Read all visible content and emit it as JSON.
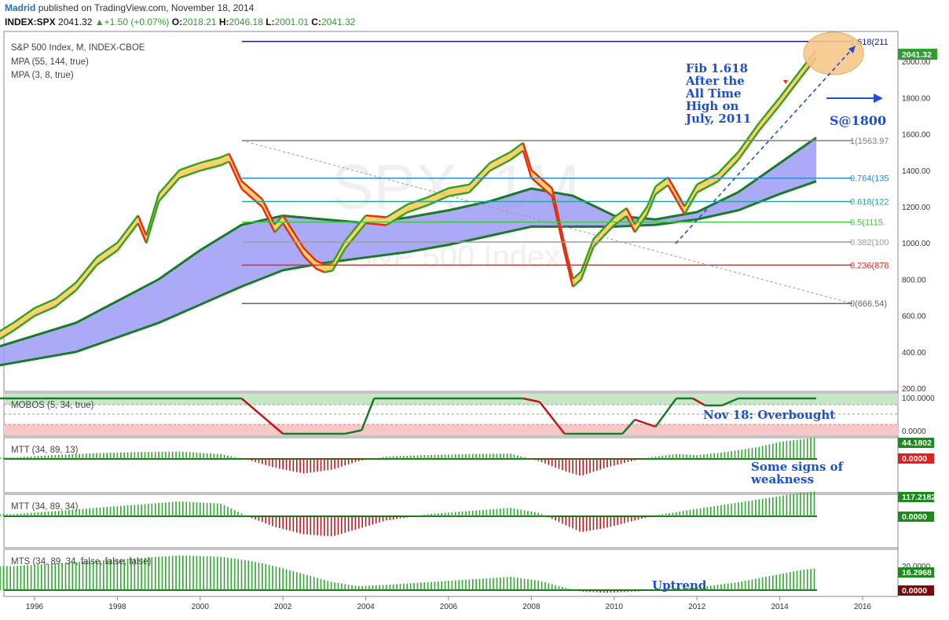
{
  "header": {
    "author": "Madrid",
    "published_text": "published on TradingView.com, November 18, 2014",
    "symbol": "INDEX:SPX",
    "last": "2041.32",
    "change": "+1.50 (+0.07%)",
    "open_label": "O:",
    "open": "2018.21",
    "high_label": "H:",
    "high": "2046.18",
    "low_label": "L:",
    "low": "2001.01",
    "close_label": "C:",
    "close": "2041.32"
  },
  "main_pane": {
    "title": "S&P 500 Index, M, INDEX-CBOE",
    "indicator1": "MPA (55, 144, true)",
    "indicator2": "MPA (3, 8, true)",
    "watermark_symbol": "SPX, 1M",
    "watermark_name": "S&P 500 Index",
    "price_badge": "2041.32",
    "price_ticks": [
      "200.00",
      "400.00",
      "600.00",
      "800.00",
      "1000.00",
      "1200.00",
      "1400.00",
      "1600.00",
      "1800.00",
      "2000.00"
    ],
    "fib_levels": [
      {
        "label": "1.618(211",
        "value": 2110,
        "color": "#1a237e"
      },
      {
        "label": "1(1563.97",
        "value": 1563.97,
        "color": "#808080"
      },
      {
        "label": "0.764(135",
        "value": 1357,
        "color": "#2e8bd6"
      },
      {
        "label": "0.618(122",
        "value": 1228,
        "color": "#26a69a"
      },
      {
        "label": "0.5(1115.",
        "value": 1115,
        "color": "#43c443"
      },
      {
        "label": "0.382(100",
        "value": 1005,
        "color": "#9e9e9e"
      },
      {
        "label": "0.236(878",
        "value": 878,
        "color": "#d32f2f"
      },
      {
        "label": "0(666.54)",
        "value": 666.54,
        "color": "#666666"
      }
    ],
    "annotations": {
      "fib_note": [
        "Fib 1.618",
        "After the",
        "All Time",
        "High on",
        "July, 2011"
      ],
      "target": "S@1800"
    }
  },
  "mobos_pane": {
    "label": "MOBOS (5, 34, true)",
    "ticks": [
      "100.0000",
      "0.0000"
    ],
    "note": "Nov 18: Overbought"
  },
  "mtt1_pane": {
    "label": "MTT (34, 89, 13)",
    "badges": [
      "44.1802",
      "0.0000"
    ],
    "note": [
      "Some signs of",
      "weakness"
    ]
  },
  "mtt2_pane": {
    "label": "MTT (34, 89, 34)",
    "badges": [
      "117.2182",
      "0.0000"
    ]
  },
  "mts_pane": {
    "label": "MTS (34, 89, 34, false, false, false)",
    "tick": "20.0000",
    "badges": [
      "16.2968",
      "0.0000"
    ],
    "note": "Uptrend"
  },
  "x_axis": {
    "ticks": [
      "1996",
      "1998",
      "2000",
      "2002",
      "2004",
      "2006",
      "2008",
      "2010",
      "2012",
      "2014",
      "2016"
    ]
  },
  "colors": {
    "ribbon_fill": "#9b9bf5",
    "ribbon_green": "#1a7a2a",
    "price_up": "#3aa020",
    "price_down": "#e53010",
    "price_fill": "#ffd070",
    "down_ribbon": "#b0306a",
    "mobos_green_zone": "#c8e6c8",
    "mobos_red_zone": "#f8c8c8",
    "hist_pos": "#2ea82e",
    "hist_neg": "#c01818",
    "annotation_blue": "#1f4fd0"
  },
  "chart_data": [
    {
      "type": "line",
      "title": "S&P 500 Index, M, INDEX-CBOE",
      "x_unit": "year",
      "ylim": [
        200,
        2150
      ],
      "series": [
        {
          "name": "S&P 500 Index",
          "x": [
            1995.0,
            1995.5,
            1996.0,
            1996.5,
            1997.0,
            1997.5,
            1998.0,
            1998.5,
            1998.7,
            1999.0,
            1999.5,
            2000.0,
            2000.5,
            2000.7,
            2001.0,
            2001.5,
            2001.8,
            2002.0,
            2002.5,
            2002.8,
            2003.0,
            2003.2,
            2003.5,
            2004.0,
            2004.5,
            2005.0,
            2005.5,
            2006.0,
            2006.5,
            2007.0,
            2007.5,
            2007.8,
            2008.0,
            2008.5,
            2008.8,
            2009.0,
            2009.2,
            2009.5,
            2010.0,
            2010.3,
            2010.5,
            2010.8,
            2011.0,
            2011.3,
            2011.7,
            2012.0,
            2012.5,
            2013.0,
            2013.5,
            2014.0,
            2014.5,
            2014.88
          ],
          "y": [
            470,
            540,
            620,
            670,
            760,
            900,
            980,
            1130,
            1020,
            1250,
            1380,
            1420,
            1450,
            1470,
            1320,
            1220,
            1080,
            1130,
            950,
            880,
            860,
            870,
            990,
            1130,
            1120,
            1190,
            1230,
            1280,
            1300,
            1420,
            1480,
            1530,
            1380,
            1280,
            970,
            780,
            820,
            1000,
            1120,
            1170,
            1080,
            1180,
            1290,
            1340,
            1180,
            1300,
            1360,
            1480,
            1640,
            1780,
            1930,
            2041
          ]
        },
        {
          "name": "MPA slow upper",
          "x": [
            1995,
            1997,
            1999,
            2000,
            2001,
            2002,
            2003,
            2004,
            2005,
            2006,
            2007,
            2008,
            2009,
            2010,
            2011,
            2012,
            2013,
            2014,
            2014.88
          ],
          "y": [
            420,
            560,
            800,
            960,
            1100,
            1150,
            1130,
            1110,
            1140,
            1180,
            1230,
            1300,
            1260,
            1150,
            1130,
            1170,
            1280,
            1440,
            1580
          ]
        },
        {
          "name": "MPA slow lower",
          "x": [
            1995,
            1997,
            1999,
            2000,
            2001,
            2002,
            2003,
            2004,
            2005,
            2006,
            2007,
            2008,
            2009,
            2010,
            2011,
            2012,
            2013,
            2014,
            2014.88
          ],
          "y": [
            320,
            400,
            560,
            660,
            760,
            850,
            890,
            920,
            950,
            990,
            1040,
            1090,
            1090,
            1090,
            1100,
            1130,
            1180,
            1270,
            1340
          ]
        }
      ]
    },
    {
      "type": "line",
      "title": "MOBOS (5, 34, true)",
      "ylim": [
        -5,
        105
      ],
      "series": [
        {
          "name": "MOBOS",
          "x": [
            1995,
            2001.0,
            2001.5,
            2002.0,
            2003.5,
            2003.9,
            2004.2,
            2007.8,
            2008.2,
            2008.8,
            2010.2,
            2010.5,
            2011.0,
            2011.5,
            2011.9,
            2012.2,
            2012.6,
            2013.0,
            2014.88
          ],
          "y": [
            100,
            100,
            50,
            0,
            0,
            10,
            100,
            100,
            90,
            0,
            0,
            40,
            20,
            100,
            100,
            80,
            80,
            100,
            100
          ]
        }
      ]
    },
    {
      "type": "bar",
      "title": "MTT (34, 89, 13)",
      "series": [
        {
          "name": "MTT 13",
          "x": [
            1995.5,
            1996.5,
            1997.5,
            1998.5,
            1999.5,
            2000.5,
            2001.2,
            2001.8,
            2002.5,
            2003.2,
            2003.8,
            2004.5,
            2005.5,
            2006.5,
            2007.5,
            2008.2,
            2008.8,
            2009.2,
            2009.8,
            2010.5,
            2011.0,
            2011.5,
            2012.0,
            2012.5,
            2013.0,
            2013.5,
            2014.0,
            2014.5,
            2014.88
          ],
          "y": [
            3,
            8,
            12,
            14,
            15,
            10,
            -3,
            -18,
            -30,
            -22,
            -5,
            5,
            8,
            10,
            11,
            -5,
            -25,
            -35,
            -18,
            -3,
            5,
            10,
            8,
            12,
            18,
            25,
            35,
            40,
            44.18
          ]
        }
      ]
    },
    {
      "type": "bar",
      "title": "MTT (34, 89, 34)",
      "series": [
        {
          "name": "MTT 34",
          "x": [
            1995.5,
            1996.5,
            1997.5,
            1998.5,
            1999.5,
            2000.5,
            2001.2,
            2001.8,
            2002.5,
            2003.2,
            2003.8,
            2004.5,
            2005.5,
            2006.5,
            2007.5,
            2008.2,
            2008.8,
            2009.2,
            2009.8,
            2010.5,
            2011.0,
            2011.5,
            2012.0,
            2012.5,
            2013.0,
            2013.5,
            2014.0,
            2014.5,
            2014.88
          ],
          "y": [
            10,
            25,
            40,
            55,
            70,
            60,
            -5,
            -50,
            -85,
            -95,
            -60,
            -20,
            10,
            25,
            40,
            15,
            -40,
            -75,
            -55,
            -20,
            5,
            20,
            35,
            50,
            65,
            80,
            95,
            110,
            117.22
          ]
        }
      ]
    },
    {
      "type": "bar",
      "title": "MTS (34, 89, 34, false, false, false)",
      "series": [
        {
          "name": "MTS",
          "x": [
            1995.5,
            1996.5,
            1997.5,
            1998.5,
            1999.5,
            2000.5,
            2001.2,
            2001.8,
            2002.5,
            2003.2,
            2003.8,
            2004.5,
            2005.5,
            2006.5,
            2007.5,
            2008.2,
            2008.8,
            2009.2,
            2009.8,
            2010.5,
            2011.0,
            2011.5,
            2012.0,
            2012.5,
            2013.0,
            2013.5,
            2014.0,
            2014.5,
            2014.88
          ],
          "y": [
            18,
            20,
            22,
            24,
            26,
            25,
            22,
            18,
            12,
            6,
            3,
            4,
            6,
            8,
            10,
            7,
            2,
            -1,
            -2,
            -1,
            0,
            1,
            2,
            4,
            6,
            9,
            12,
            15,
            16.3
          ]
        }
      ]
    }
  ]
}
